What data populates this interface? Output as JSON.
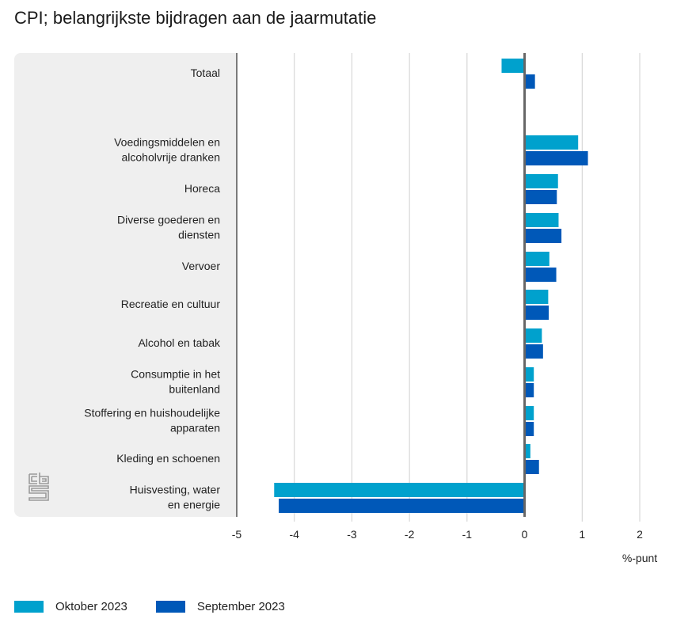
{
  "title": "CPI; belangrijkste bijdragen aan de jaarmutatie",
  "legend": [
    {
      "label": "Oktober 2023",
      "color": "#00A1CD"
    },
    {
      "label": "September 2023",
      "color": "#0058B8"
    }
  ],
  "logo": "cbs-logo-icon",
  "chart_data": {
    "type": "bar",
    "orientation": "horizontal",
    "title": "CPI; belangrijkste bijdragen aan de jaarmutatie",
    "xlabel": "%-punt",
    "ylabel": "",
    "xlim": [
      -5,
      2
    ],
    "xticks": [
      -5,
      -4,
      -3,
      -2,
      -1,
      0,
      1,
      2
    ],
    "grid": true,
    "legend_position": "bottom-left",
    "categories": [
      [
        "Totaal"
      ],
      [],
      [
        "Voedingsmiddelen en",
        "alcoholvrije dranken"
      ],
      [
        "Horeca"
      ],
      [
        "Diverse goederen en",
        "diensten"
      ],
      [
        "Vervoer"
      ],
      [
        "Recreatie en cultuur"
      ],
      [
        "Alcohol en tabak"
      ],
      [
        "Consumptie in het",
        "buitenland"
      ],
      [
        "Stoffering en huishoudelijke",
        "apparaten"
      ],
      [
        "Kleding en schoenen"
      ],
      [
        "Huisvesting, water",
        "en energie"
      ]
    ],
    "series": [
      {
        "name": "Oktober 2023",
        "color": "#00A1CD",
        "values": [
          -0.4,
          null,
          0.93,
          0.58,
          0.59,
          0.43,
          0.41,
          0.3,
          0.16,
          0.16,
          0.1,
          -4.35
        ]
      },
      {
        "name": "September 2023",
        "color": "#0058B8",
        "values": [
          0.18,
          null,
          1.1,
          0.56,
          0.64,
          0.55,
          0.42,
          0.32,
          0.16,
          0.16,
          0.25,
          -4.27
        ]
      }
    ]
  }
}
